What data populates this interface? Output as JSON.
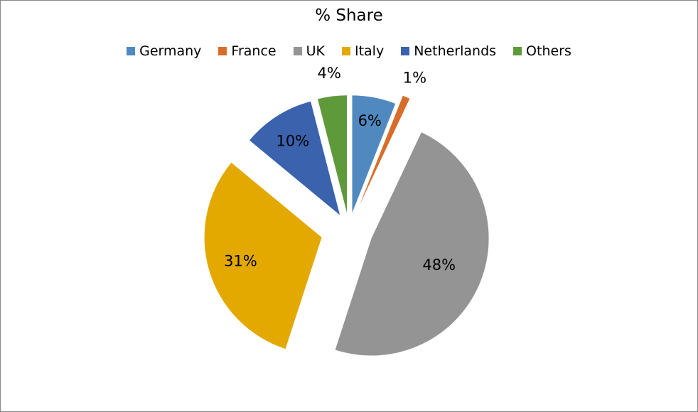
{
  "chart_data": {
    "type": "pie",
    "title": "% Share",
    "legend_position": "top",
    "categories": [
      "Germany",
      "France",
      "UK",
      "Italy",
      "Netherlands",
      "Others"
    ],
    "values": [
      6,
      1,
      48,
      31,
      10,
      4
    ],
    "labels": [
      "6%",
      "1%",
      "48%",
      "31%",
      "10%",
      "4%"
    ],
    "colors": [
      "#4f89c0",
      "#d86d29",
      "#949494",
      "#e3a900",
      "#3a62ad",
      "#5f9a3a"
    ],
    "exploded": true
  }
}
